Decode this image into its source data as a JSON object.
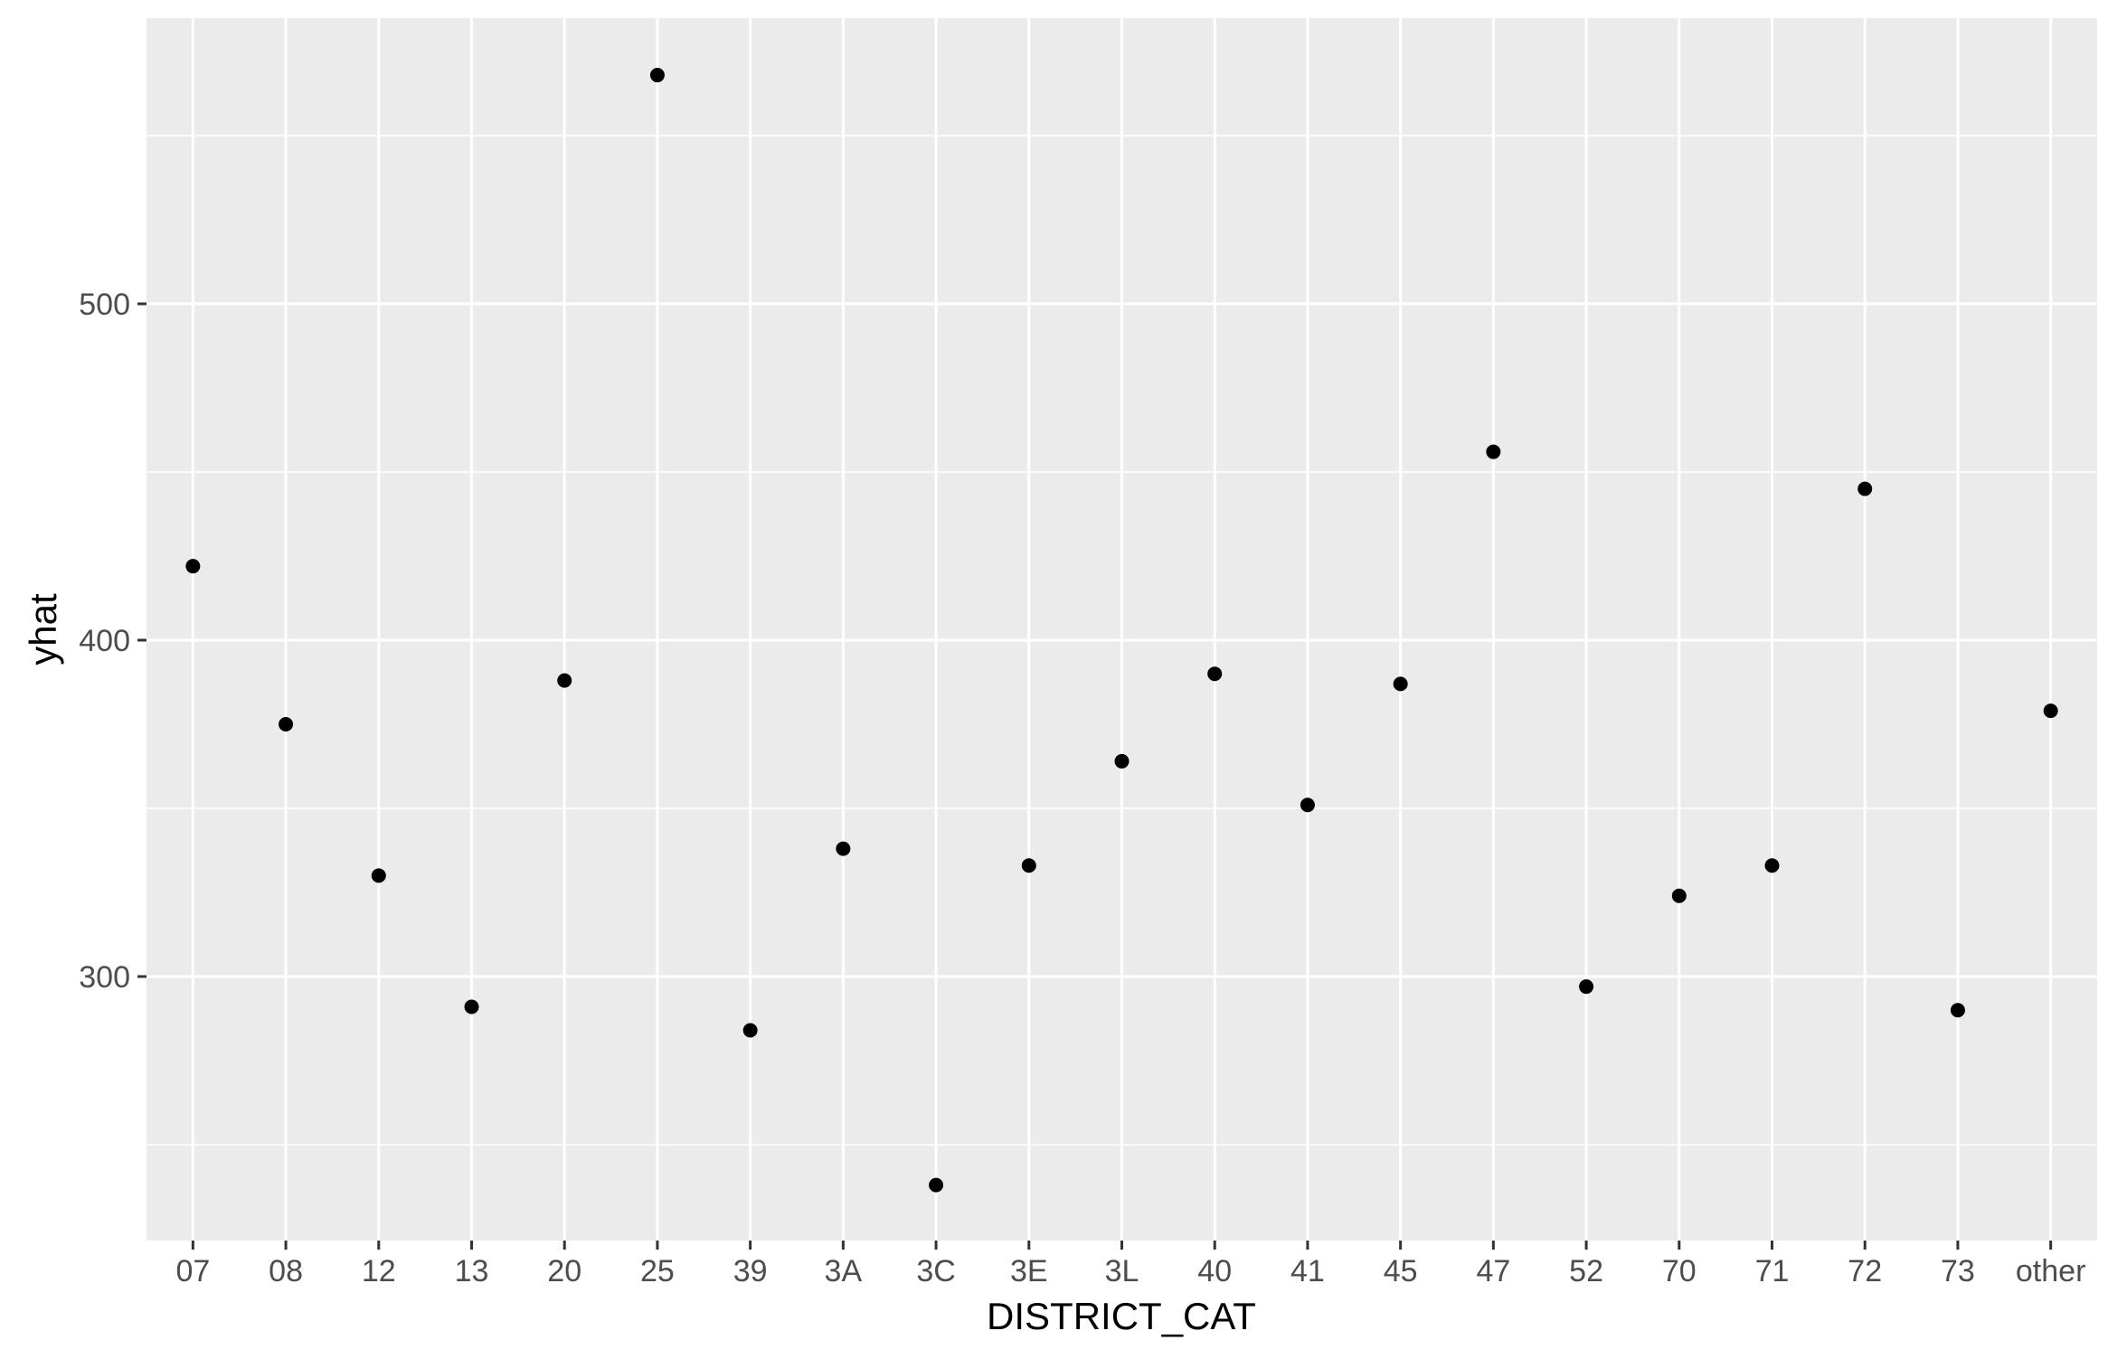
{
  "chart_data": {
    "type": "scatter",
    "title": "",
    "xlabel": "DISTRICT_CAT",
    "ylabel": "yhat",
    "categories": [
      "07",
      "08",
      "12",
      "13",
      "20",
      "25",
      "39",
      "3A",
      "3C",
      "3E",
      "3L",
      "40",
      "41",
      "45",
      "47",
      "52",
      "70",
      "71",
      "72",
      "73",
      "other"
    ],
    "values": [
      422,
      375,
      330,
      291,
      388,
      568,
      284,
      338,
      238,
      333,
      364,
      390,
      351,
      387,
      456,
      297,
      324,
      333,
      445,
      290,
      379
    ],
    "ylim": [
      232,
      585
    ],
    "yticks": [
      300,
      400,
      500
    ],
    "yticks_minor": [
      250,
      350,
      450,
      550
    ],
    "grid": true,
    "legend": "none",
    "colors": {
      "panel_bg": "#ebebeb",
      "grid": "#ffffff",
      "point": "#000000",
      "tick_text": "#4d4d4d",
      "tick_mark": "#333333"
    }
  }
}
